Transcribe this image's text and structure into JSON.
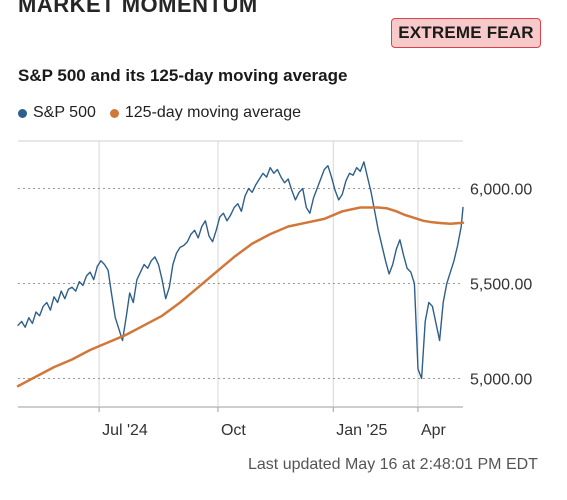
{
  "header": {
    "title": "MARKET MOMENTUM",
    "badge": "EXTREME FEAR"
  },
  "colors": {
    "sp500": "#2e5f8a",
    "ma125": "#d2773a",
    "badge_bg": "#f7c9c9",
    "badge_border": "#d9434b",
    "grid": "#bdbdbd"
  },
  "chart_data": {
    "type": "line",
    "title": "S&P 500 and its 125-day moving average",
    "legend_position": "top-left",
    "grid": true,
    "ylim": [
      4850,
      6250
    ],
    "x_tick_labels": [
      "Jul '24",
      "Oct",
      "Jan '25",
      "Apr"
    ],
    "y_ticks": [
      {
        "value": 5000,
        "label": "5,000.00"
      },
      {
        "value": 5500,
        "label": "5,500.00"
      },
      {
        "value": 6000,
        "label": "6,000.00"
      }
    ],
    "x_tick_positions": [
      45,
      111,
      175,
      222
    ],
    "x_range": [
      0,
      247
    ],
    "series": [
      {
        "name": "S&P 500",
        "values": [
          [
            0,
            5280
          ],
          [
            2,
            5300
          ],
          [
            4,
            5270
          ],
          [
            6,
            5320
          ],
          [
            8,
            5290
          ],
          [
            10,
            5350
          ],
          [
            12,
            5330
          ],
          [
            14,
            5380
          ],
          [
            16,
            5400
          ],
          [
            18,
            5360
          ],
          [
            20,
            5430
          ],
          [
            22,
            5400
          ],
          [
            24,
            5460
          ],
          [
            26,
            5420
          ],
          [
            28,
            5470
          ],
          [
            30,
            5480
          ],
          [
            32,
            5460
          ],
          [
            34,
            5510
          ],
          [
            36,
            5490
          ],
          [
            38,
            5540
          ],
          [
            40,
            5560
          ],
          [
            42,
            5520
          ],
          [
            44,
            5590
          ],
          [
            46,
            5620
          ],
          [
            48,
            5600
          ],
          [
            50,
            5570
          ],
          [
            52,
            5440
          ],
          [
            54,
            5320
          ],
          [
            56,
            5260
          ],
          [
            58,
            5200
          ],
          [
            60,
            5320
          ],
          [
            62,
            5450
          ],
          [
            64,
            5400
          ],
          [
            66,
            5520
          ],
          [
            68,
            5560
          ],
          [
            70,
            5600
          ],
          [
            72,
            5580
          ],
          [
            74,
            5620
          ],
          [
            76,
            5640
          ],
          [
            78,
            5600
          ],
          [
            80,
            5520
          ],
          [
            82,
            5420
          ],
          [
            84,
            5480
          ],
          [
            86,
            5600
          ],
          [
            88,
            5660
          ],
          [
            90,
            5690
          ],
          [
            92,
            5700
          ],
          [
            94,
            5720
          ],
          [
            96,
            5760
          ],
          [
            98,
            5780
          ],
          [
            100,
            5740
          ],
          [
            102,
            5800
          ],
          [
            104,
            5830
          ],
          [
            106,
            5750
          ],
          [
            108,
            5720
          ],
          [
            110,
            5780
          ],
          [
            112,
            5850
          ],
          [
            114,
            5870
          ],
          [
            116,
            5830
          ],
          [
            118,
            5860
          ],
          [
            120,
            5900
          ],
          [
            122,
            5920
          ],
          [
            124,
            5880
          ],
          [
            126,
            5960
          ],
          [
            128,
            6000
          ],
          [
            130,
            5980
          ],
          [
            132,
            6020
          ],
          [
            134,
            6050
          ],
          [
            136,
            6080
          ],
          [
            138,
            6060
          ],
          [
            140,
            6110
          ],
          [
            142,
            6080
          ],
          [
            144,
            6100
          ],
          [
            146,
            6060
          ],
          [
            148,
            6030
          ],
          [
            150,
            6050
          ],
          [
            152,
            5990
          ],
          [
            154,
            5940
          ],
          [
            156,
            5980
          ],
          [
            158,
            6000
          ],
          [
            160,
            5900
          ],
          [
            162,
            5870
          ],
          [
            164,
            5950
          ],
          [
            166,
            6000
          ],
          [
            168,
            6050
          ],
          [
            170,
            6100
          ],
          [
            172,
            6120
          ],
          [
            174,
            6060
          ],
          [
            176,
            5990
          ],
          [
            178,
            5940
          ],
          [
            180,
            5970
          ],
          [
            182,
            6040
          ],
          [
            184,
            6080
          ],
          [
            186,
            6070
          ],
          [
            188,
            6110
          ],
          [
            190,
            6090
          ],
          [
            192,
            6140
          ],
          [
            194,
            6060
          ],
          [
            196,
            5980
          ],
          [
            198,
            5880
          ],
          [
            200,
            5780
          ],
          [
            202,
            5700
          ],
          [
            204,
            5620
          ],
          [
            206,
            5550
          ],
          [
            208,
            5600
          ],
          [
            210,
            5680
          ],
          [
            212,
            5730
          ],
          [
            214,
            5650
          ],
          [
            216,
            5580
          ],
          [
            218,
            5560
          ],
          [
            220,
            5500
          ],
          [
            222,
            5050
          ],
          [
            224,
            5000
          ],
          [
            226,
            5300
          ],
          [
            228,
            5400
          ],
          [
            230,
            5380
          ],
          [
            232,
            5290
          ],
          [
            234,
            5200
          ],
          [
            236,
            5400
          ],
          [
            238,
            5500
          ],
          [
            240,
            5560
          ],
          [
            242,
            5620
          ],
          [
            244,
            5700
          ],
          [
            246,
            5800
          ],
          [
            247,
            5900
          ]
        ]
      },
      {
        "name": "125-day moving average",
        "values": [
          [
            0,
            4960
          ],
          [
            10,
            5010
          ],
          [
            20,
            5060
          ],
          [
            30,
            5100
          ],
          [
            40,
            5150
          ],
          [
            50,
            5190
          ],
          [
            60,
            5230
          ],
          [
            70,
            5280
          ],
          [
            80,
            5330
          ],
          [
            90,
            5400
          ],
          [
            100,
            5480
          ],
          [
            110,
            5560
          ],
          [
            120,
            5640
          ],
          [
            130,
            5710
          ],
          [
            140,
            5760
          ],
          [
            150,
            5800
          ],
          [
            160,
            5820
          ],
          [
            170,
            5840
          ],
          [
            180,
            5880
          ],
          [
            190,
            5900
          ],
          [
            195,
            5900
          ],
          [
            200,
            5900
          ],
          [
            205,
            5895
          ],
          [
            210,
            5880
          ],
          [
            215,
            5860
          ],
          [
            220,
            5845
          ],
          [
            225,
            5830
          ],
          [
            230,
            5822
          ],
          [
            235,
            5818
          ],
          [
            240,
            5815
          ],
          [
            247,
            5820
          ]
        ]
      }
    ]
  },
  "footer": {
    "last_updated": "Last updated May 16 at 2:48:01 PM EDT"
  }
}
